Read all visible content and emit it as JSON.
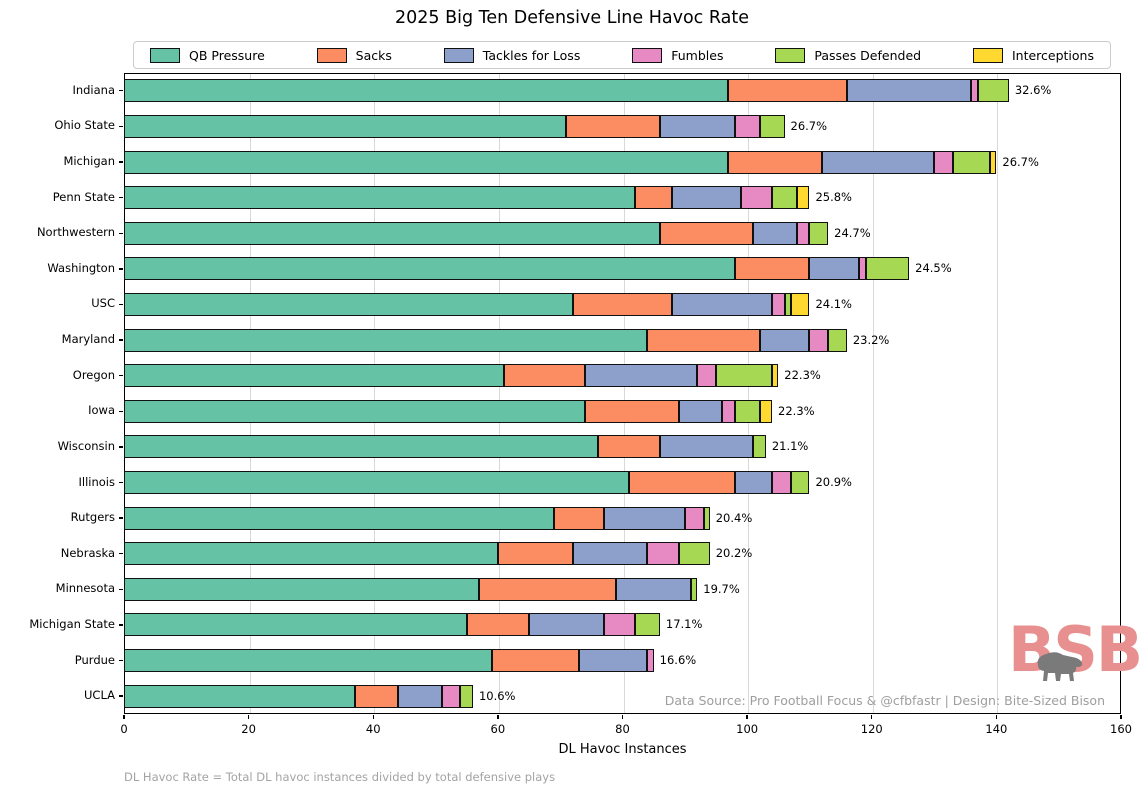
{
  "title": "2025 Big Ten Defensive Line Havoc Rate",
  "footnote": "DL Havoc Rate = Total DL havoc instances divided by total defensive plays",
  "datasource": "Data Source: Pro Football Focus & @cfbfastr | Design: Bite-Sized Bison",
  "logo": {
    "text": "BSB",
    "color": "#e89090",
    "bison_color": "#7a7a7a"
  },
  "chart_data": {
    "type": "bar",
    "orientation": "horizontal",
    "title": "2025 Big Ten Defensive Line Havoc Rate",
    "xlabel": "DL Havoc Instances",
    "ylabel": "",
    "xlim": [
      0,
      160
    ],
    "xticks": [
      0,
      20,
      40,
      60,
      80,
      100,
      120,
      140,
      160
    ],
    "grid": true,
    "legend_position": "top",
    "categories": [
      "Indiana",
      "Ohio State",
      "Michigan",
      "Penn State",
      "Northwestern",
      "Washington",
      "USC",
      "Maryland",
      "Oregon",
      "Iowa",
      "Wisconsin",
      "Illinois",
      "Rutgers",
      "Nebraska",
      "Minnesota",
      "Michigan State",
      "Purdue",
      "UCLA"
    ],
    "series": [
      {
        "name": "QB Pressure",
        "color": "#66c2a5",
        "values": [
          97,
          71,
          97,
          82,
          86,
          98,
          72,
          84,
          61,
          74,
          76,
          81,
          69,
          60,
          57,
          55,
          59,
          37
        ]
      },
      {
        "name": "Sacks",
        "color": "#fc8d62",
        "values": [
          19,
          15,
          15,
          6,
          15,
          12,
          16,
          18,
          13,
          15,
          10,
          17,
          8,
          12,
          22,
          10,
          14,
          7
        ]
      },
      {
        "name": "Tackles for Loss",
        "color": "#8da0cb",
        "values": [
          20,
          12,
          18,
          11,
          7,
          8,
          16,
          8,
          18,
          7,
          15,
          6,
          13,
          12,
          12,
          12,
          11,
          7
        ]
      },
      {
        "name": "Fumbles",
        "color": "#e78ac3",
        "values": [
          1,
          4,
          3,
          5,
          2,
          1,
          2,
          3,
          3,
          2,
          0,
          3,
          3,
          5,
          0,
          5,
          1,
          3
        ]
      },
      {
        "name": "Passes Defended",
        "color": "#a6d854",
        "values": [
          5,
          4,
          6,
          4,
          3,
          7,
          1,
          3,
          9,
          4,
          2,
          3,
          1,
          5,
          1,
          4,
          0,
          2
        ]
      },
      {
        "name": "Interceptions",
        "color": "#ffd92f",
        "values": [
          0,
          0,
          1,
          2,
          0,
          0,
          3,
          0,
          1,
          2,
          0,
          0,
          0,
          0,
          0,
          0,
          0,
          0
        ]
      }
    ],
    "bar_totals": [
      142,
      106,
      140,
      110,
      113,
      126,
      110,
      116,
      105,
      104,
      103,
      110,
      94,
      94,
      92,
      86,
      85,
      56
    ],
    "bar_labels": [
      "32.6%",
      "26.7%",
      "26.7%",
      "25.8%",
      "24.7%",
      "24.5%",
      "24.1%",
      "23.2%",
      "22.3%",
      "22.3%",
      "21.1%",
      "20.9%",
      "20.4%",
      "20.2%",
      "19.7%",
      "17.1%",
      "16.6%",
      "10.6%"
    ]
  }
}
